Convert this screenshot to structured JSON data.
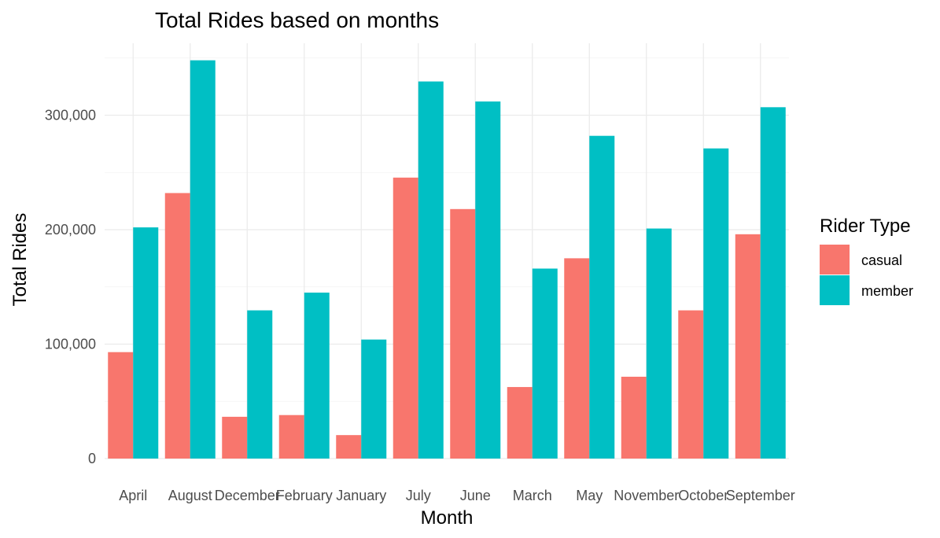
{
  "chart_data": {
    "type": "bar",
    "title": "Total Rides based on months",
    "xlabel": "Month",
    "ylabel": "Total Rides",
    "categories": [
      "April",
      "August",
      "December",
      "February",
      "January",
      "July",
      "June",
      "March",
      "May",
      "November",
      "October",
      "September"
    ],
    "series": [
      {
        "name": "casual",
        "color": "#F8766D",
        "values": [
          93000,
          232000,
          36500,
          38000,
          20500,
          245500,
          218000,
          62500,
          175000,
          71500,
          129500,
          196000
        ]
      },
      {
        "name": "member",
        "color": "#00BFC4",
        "values": [
          202000,
          348000,
          129500,
          145000,
          104000,
          329500,
          312000,
          166000,
          282000,
          201000,
          271000,
          307000
        ]
      }
    ],
    "ylim": [
      0,
      360000
    ],
    "yticks": [
      0,
      100000,
      200000,
      300000
    ],
    "ytick_labels": [
      "0",
      "100,000",
      "200,000",
      "300,000"
    ],
    "grid": true,
    "legend": {
      "title": "Rider Type",
      "position": "right"
    }
  }
}
